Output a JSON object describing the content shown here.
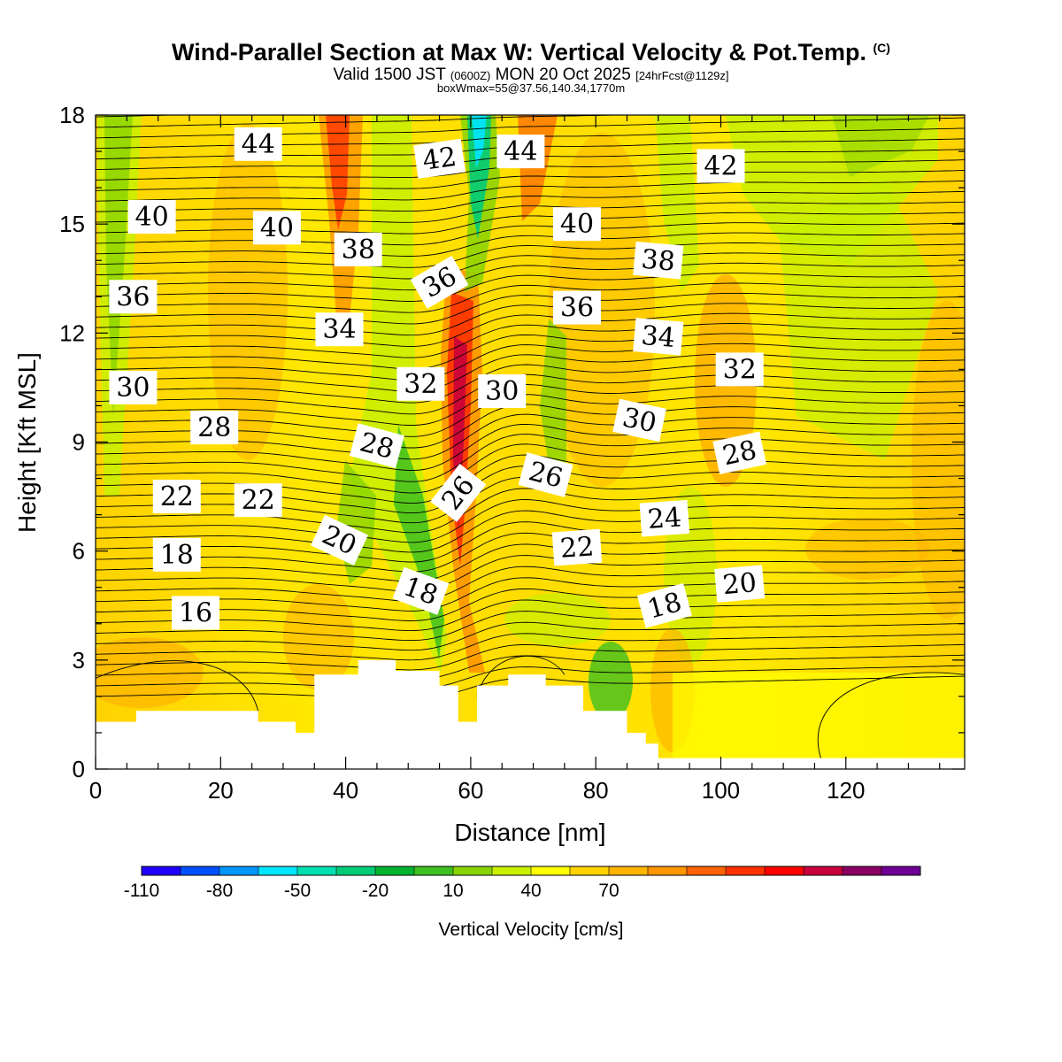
{
  "title": {
    "main": "Wind-Parallel Section at Max W: Vertical Velocity & Pot.Temp.",
    "copyright": "(C)",
    "valid_prefix": "Valid 1500 JST",
    "valid_z": "(0600Z)",
    "valid_date": "MON 20 Oct 2025",
    "forecast": "[24hrFcst@1129z]",
    "boxinfo": "boxWmax=55@37.56,140.34,1770m"
  },
  "chart_data": {
    "type": "heatmap",
    "xlabel": "Distance [nm]",
    "ylabel": "Height [Kft MSL]",
    "xlim": [
      0,
      139
    ],
    "ylim": [
      0,
      18
    ],
    "x_ticks": [
      0,
      20,
      40,
      60,
      80,
      100,
      120
    ],
    "y_ticks": [
      0,
      3,
      6,
      9,
      12,
      15,
      18
    ],
    "colorbar": {
      "label": "Vertical Velocity [cm/s]",
      "tick_labels": [
        "-110",
        "-80",
        "-50",
        "-20",
        "10",
        "40",
        "70"
      ],
      "tick_values": [
        -110,
        -80,
        -50,
        -20,
        10,
        40,
        70
      ],
      "colors": [
        "#1e00ff",
        "#0050ff",
        "#0096ff",
        "#00e6ff",
        "#00e0b0",
        "#00cc78",
        "#00b430",
        "#40c020",
        "#88d400",
        "#c8f000",
        "#ffff00",
        "#ffd200",
        "#ffb400",
        "#ff9600",
        "#ff6400",
        "#ff3200",
        "#ff0000",
        "#c8003c",
        "#8c0064",
        "#6e0096"
      ]
    },
    "terrain": {
      "x": [
        0,
        6.5,
        6.5,
        26,
        26,
        32,
        32,
        35,
        35,
        42,
        42,
        48,
        48,
        55,
        55,
        58,
        58,
        61,
        61,
        66,
        66,
        72,
        72,
        78,
        78,
        85,
        85,
        88,
        88,
        90,
        90,
        139
      ],
      "z": [
        1.3,
        1.3,
        1.6,
        1.6,
        1.3,
        1.3,
        1.0,
        1.0,
        2.6,
        2.6,
        3.0,
        3.0,
        2.7,
        2.7,
        2.3,
        2.3,
        1.3,
        1.3,
        2.3,
        2.3,
        2.6,
        2.6,
        2.3,
        2.3,
        1.6,
        1.6,
        1.0,
        1.0,
        0.7,
        0.7,
        0.3,
        0.3
      ]
    },
    "theta_labels": [
      {
        "text": "44",
        "x": 26,
        "z": 17.2
      },
      {
        "text": "42",
        "x": 55,
        "z": 16.8
      },
      {
        "text": "44",
        "x": 68,
        "z": 17.0
      },
      {
        "text": "42",
        "x": 100,
        "z": 16.6
      },
      {
        "text": "40",
        "x": 9,
        "z": 15.2
      },
      {
        "text": "40",
        "x": 29,
        "z": 14.9
      },
      {
        "text": "40",
        "x": 77,
        "z": 15.0
      },
      {
        "text": "38",
        "x": 42,
        "z": 14.3
      },
      {
        "text": "38",
        "x": 90,
        "z": 14.0
      },
      {
        "text": "36",
        "x": 6,
        "z": 13.0
      },
      {
        "text": "36",
        "x": 55,
        "z": 13.4
      },
      {
        "text": "36",
        "x": 77,
        "z": 12.7
      },
      {
        "text": "34",
        "x": 39,
        "z": 12.1
      },
      {
        "text": "34",
        "x": 90,
        "z": 11.9
      },
      {
        "text": "32",
        "x": 52,
        "z": 10.6
      },
      {
        "text": "32",
        "x": 103,
        "z": 11.0
      },
      {
        "text": "30",
        "x": 6,
        "z": 10.5
      },
      {
        "text": "30",
        "x": 65,
        "z": 10.4
      },
      {
        "text": "30",
        "x": 87,
        "z": 9.6
      },
      {
        "text": "28",
        "x": 19,
        "z": 9.4
      },
      {
        "text": "28",
        "x": 45,
        "z": 8.9
      },
      {
        "text": "28",
        "x": 103,
        "z": 8.7
      },
      {
        "text": "26",
        "x": 58,
        "z": 7.6
      },
      {
        "text": "26",
        "x": 72,
        "z": 8.1
      },
      {
        "text": "24",
        "x": 91,
        "z": 6.9
      },
      {
        "text": "22",
        "x": 13,
        "z": 7.5
      },
      {
        "text": "22",
        "x": 26,
        "z": 7.4
      },
      {
        "text": "22",
        "x": 77,
        "z": 6.1
      },
      {
        "text": "20",
        "x": 39,
        "z": 6.3
      },
      {
        "text": "20",
        "x": 103,
        "z": 5.1
      },
      {
        "text": "18",
        "x": 13,
        "z": 5.9
      },
      {
        "text": "18",
        "x": 52,
        "z": 4.9
      },
      {
        "text": "18",
        "x": 91,
        "z": 4.5
      },
      {
        "text": "16",
        "x": 16,
        "z": 4.3
      }
    ]
  }
}
